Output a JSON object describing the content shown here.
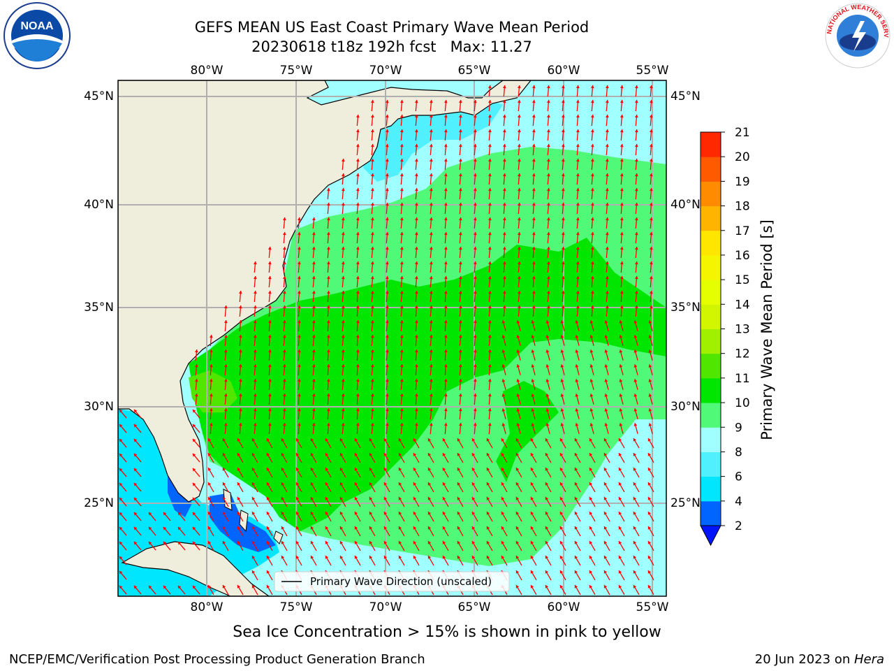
{
  "title": {
    "line1": "GEFS MEAN US East Coast Primary Wave Mean Period",
    "line2": "20230618 t18z 192h fcst   Max: 11.27"
  },
  "map": {
    "lon_labels": [
      "80°W",
      "75°W",
      "70°W",
      "65°W",
      "60°W",
      "55°W"
    ],
    "lat_labels": [
      "45°N",
      "40°N",
      "35°N",
      "30°N",
      "25°N"
    ],
    "legend_label": "Primary Wave Direction (unscaled)",
    "vector_color": "#ff0000",
    "land_color": "#efeddc"
  },
  "colorbar": {
    "label": "Primary Wave Mean Period [s]",
    "ticks": [
      "2",
      "4",
      "6",
      "8",
      "9",
      "10",
      "11",
      "12",
      "13",
      "14",
      "15",
      "16",
      "17",
      "18",
      "19",
      "20",
      "21"
    ],
    "colors": [
      "#0064ff",
      "#00e6ff",
      "#50f0ff",
      "#a0ffff",
      "#50fa78",
      "#00e600",
      "#50e600",
      "#a0f000",
      "#d2f500",
      "#e6ff00",
      "#f5f500",
      "#ffe600",
      "#ffb400",
      "#ff8c00",
      "#ff5a00",
      "#ff2800"
    ],
    "extend_color": "#0014ff"
  },
  "subtitle": "Sea Ice Concentration > 15% is shown in pink to yellow",
  "footer": {
    "left": "NCEP/EMC/Verification Post Processing Product Generation Branch",
    "right_date": "20 Jun 2023 on ",
    "right_machine": "Hera"
  },
  "logos": {
    "noaa_text": "NOAA",
    "nws_text": "NATIONAL WEATHER SERVICE"
  }
}
